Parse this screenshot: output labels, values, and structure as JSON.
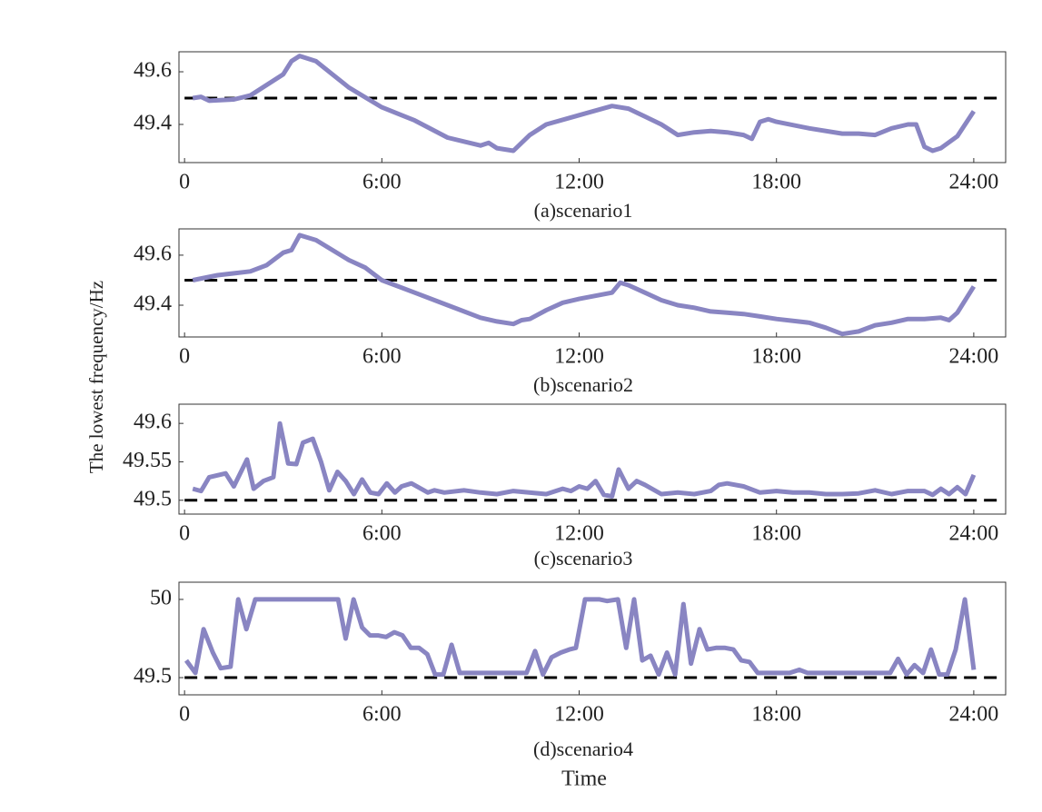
{
  "ylabel": "The lowest frequency/Hz",
  "xlabel": "Time",
  "chart_data": [
    {
      "type": "line",
      "caption": "(a)scenario1",
      "color": "#8985c2",
      "hline": 49.5,
      "xlim": [
        -0.17,
        24.97
      ],
      "ylim": [
        49.255,
        49.676
      ],
      "xticks": [
        0,
        {
          "value": 6,
          "label": "6:00"
        },
        {
          "value": 12,
          "label": "12:00"
        },
        {
          "value": 18,
          "label": "18:00"
        },
        {
          "value": 24,
          "label": "24:00"
        }
      ],
      "yticks": [
        49.4,
        49.6
      ],
      "x": [
        0.25,
        0.5,
        0.75,
        1.5,
        2,
        2.5,
        3,
        3.25,
        3.5,
        4,
        4.5,
        5,
        6,
        7,
        8,
        9,
        9.25,
        9.5,
        10,
        10.5,
        11,
        12,
        13,
        13.5,
        14,
        14.5,
        15,
        15.5,
        16,
        16.5,
        17,
        17.25,
        17.5,
        17.75,
        18,
        19,
        20,
        20.5,
        21,
        21.5,
        22,
        22.25,
        22.5,
        22.75,
        23,
        23.5,
        24
      ],
      "values": [
        49.5,
        49.505,
        49.49,
        49.495,
        49.51,
        49.55,
        49.59,
        49.64,
        49.66,
        49.64,
        49.59,
        49.54,
        49.465,
        49.415,
        49.35,
        49.32,
        49.33,
        49.31,
        49.3,
        49.36,
        49.4,
        49.435,
        49.47,
        49.46,
        49.43,
        49.4,
        49.36,
        49.37,
        49.375,
        49.37,
        49.36,
        49.345,
        49.41,
        49.42,
        49.41,
        49.385,
        49.365,
        49.365,
        49.36,
        49.385,
        49.4,
        49.4,
        49.315,
        49.3,
        49.31,
        49.355,
        49.45
      ]
    },
    {
      "type": "line",
      "caption": "(b)scenario2",
      "color": "#8985c2",
      "hline": 49.5,
      "xlim": [
        -0.17,
        24.97
      ],
      "ylim": [
        49.273,
        49.705
      ],
      "xticks": [
        0,
        {
          "value": 6,
          "label": "6:00"
        },
        {
          "value": 12,
          "label": "12:00"
        },
        {
          "value": 18,
          "label": "18:00"
        },
        {
          "value": 24,
          "label": "24:00"
        }
      ],
      "yticks": [
        49.4,
        49.6
      ],
      "x": [
        0.25,
        1,
        2,
        2.5,
        3,
        3.25,
        3.5,
        4,
        4.5,
        5,
        5.5,
        6,
        7,
        8,
        9,
        9.5,
        10,
        10.25,
        10.5,
        11,
        11.5,
        12,
        13,
        13.25,
        13.5,
        14,
        14.5,
        15,
        15.5,
        16,
        16.5,
        17,
        17.5,
        18,
        19,
        19.5,
        20,
        20.5,
        21,
        21.5,
        22,
        22.5,
        23,
        23.25,
        23.5,
        24
      ],
      "values": [
        49.5,
        49.52,
        49.535,
        49.56,
        49.61,
        49.62,
        49.68,
        49.66,
        49.62,
        49.58,
        49.55,
        49.5,
        49.45,
        49.4,
        49.35,
        49.335,
        49.325,
        49.34,
        49.345,
        49.38,
        49.41,
        49.425,
        49.45,
        49.49,
        49.48,
        49.45,
        49.42,
        49.4,
        49.39,
        49.375,
        49.37,
        49.365,
        49.355,
        49.345,
        49.33,
        49.31,
        49.285,
        49.295,
        49.32,
        49.33,
        49.345,
        49.345,
        49.35,
        49.34,
        49.37,
        49.475
      ]
    },
    {
      "type": "line",
      "caption": "(c)scenario3",
      "color": "#8985c2",
      "hline": 49.5,
      "xlim": [
        -0.17,
        24.97
      ],
      "ylim": [
        49.482,
        49.625
      ],
      "xticks": [
        0,
        {
          "value": 6,
          "label": "6:00"
        },
        {
          "value": 12,
          "label": "12:00"
        },
        {
          "value": 18,
          "label": "18:00"
        },
        {
          "value": 24,
          "label": "24:00"
        }
      ],
      "yticks": [
        49.5,
        49.55,
        49.6
      ],
      "x": [
        0.25,
        0.5,
        0.75,
        1.25,
        1.5,
        1.9,
        2.1,
        2.4,
        2.7,
        2.9,
        3.15,
        3.4,
        3.6,
        3.9,
        4.15,
        4.4,
        4.65,
        4.9,
        5.15,
        5.4,
        5.65,
        5.9,
        6.15,
        6.4,
        6.6,
        6.9,
        7.4,
        7.6,
        7.9,
        8.5,
        9,
        9.5,
        10,
        11,
        11.5,
        11.75,
        12,
        12.25,
        12.5,
        12.75,
        13,
        13.2,
        13.5,
        13.75,
        14,
        14.5,
        15,
        15.5,
        16,
        16.25,
        16.5,
        17,
        17.5,
        18,
        18.5,
        19,
        19.5,
        20,
        20.5,
        21,
        21.5,
        22,
        22.5,
        22.75,
        23,
        23.25,
        23.5,
        23.75,
        24
      ],
      "values": [
        49.515,
        49.512,
        49.53,
        49.535,
        49.518,
        49.553,
        49.515,
        49.525,
        49.53,
        49.6,
        49.548,
        49.547,
        49.575,
        49.58,
        49.55,
        49.513,
        49.537,
        49.525,
        49.508,
        49.527,
        49.51,
        49.508,
        49.522,
        49.51,
        49.518,
        49.522,
        49.51,
        49.513,
        49.51,
        49.513,
        49.51,
        49.508,
        49.512,
        49.508,
        49.515,
        49.512,
        49.518,
        49.515,
        49.525,
        49.507,
        49.505,
        49.54,
        49.515,
        49.525,
        49.52,
        49.508,
        49.51,
        49.508,
        49.512,
        49.52,
        49.522,
        49.518,
        49.51,
        49.512,
        49.51,
        49.51,
        49.508,
        49.508,
        49.509,
        49.513,
        49.508,
        49.512,
        49.512,
        49.507,
        49.515,
        49.508,
        49.517,
        49.508,
        49.533
      ]
    },
    {
      "type": "line",
      "caption": "(d)scenario4",
      "color": "#8985c2",
      "hline": 49.5,
      "xlim": [
        -0.17,
        24.97
      ],
      "ylim": [
        49.39,
        50.11
      ],
      "xticks": [
        0,
        {
          "value": 6,
          "label": "6:00"
        },
        {
          "value": 12,
          "label": "12:00"
        },
        {
          "value": 18,
          "label": "18:00"
        },
        {
          "value": 24,
          "label": "24:00"
        }
      ],
      "yticks": [
        49.5,
        50
      ],
      "x": [
        0.05,
        0.33,
        0.58,
        0.86,
        1.1,
        1.4,
        1.63,
        1.88,
        2.15,
        4.67,
        4.9,
        5.14,
        5.4,
        5.64,
        5.88,
        6.13,
        6.38,
        6.63,
        6.88,
        7.13,
        7.38,
        7.62,
        7.87,
        8.12,
        8.37,
        10.4,
        10.66,
        10.9,
        11.16,
        11.44,
        11.7,
        11.9,
        12.18,
        12.62,
        12.85,
        13.18,
        13.43,
        13.67,
        13.92,
        14.17,
        14.42,
        14.67,
        14.92,
        15.17,
        15.4,
        15.66,
        15.9,
        16.16,
        16.44,
        16.69,
        16.93,
        17.18,
        17.43,
        18.4,
        18.7,
        18.95,
        21.46,
        21.7,
        21.96,
        22.2,
        22.46,
        22.7,
        22.95,
        23.2,
        23.45,
        23.73,
        24
      ],
      "values": [
        49.61,
        49.53,
        49.81,
        49.66,
        49.56,
        49.57,
        50,
        49.81,
        50,
        50,
        49.75,
        50,
        49.82,
        49.77,
        49.77,
        49.76,
        49.79,
        49.77,
        49.69,
        49.69,
        49.65,
        49.52,
        49.52,
        49.71,
        49.53,
        49.53,
        49.67,
        49.52,
        49.63,
        49.66,
        49.68,
        49.69,
        50,
        50,
        49.99,
        50,
        49.69,
        50,
        49.61,
        49.64,
        49.52,
        49.66,
        49.52,
        49.97,
        49.59,
        49.81,
        49.68,
        49.69,
        49.69,
        49.68,
        49.61,
        49.6,
        49.53,
        49.53,
        49.55,
        49.53,
        49.53,
        49.62,
        49.52,
        49.58,
        49.53,
        49.68,
        49.52,
        49.52,
        49.68,
        50,
        49.55
      ]
    }
  ]
}
